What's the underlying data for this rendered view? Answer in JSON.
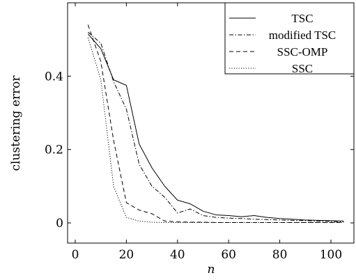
{
  "chart_data": {
    "type": "line",
    "title": "",
    "xlabel": "n",
    "ylabel": "clustering error",
    "xlim": [
      -3,
      109
    ],
    "ylim": [
      -0.055,
      0.6
    ],
    "x_ticks": [
      0,
      20,
      40,
      60,
      80,
      100
    ],
    "y_ticks": [
      0,
      0.2,
      0.4
    ],
    "y_tick_labels": [
      "0",
      "0.2",
      "0.4"
    ],
    "grid": false,
    "legend_position": "top-right",
    "series": [
      {
        "name": "TSC",
        "style": "solid",
        "x": [
          5,
          10,
          15,
          20,
          25,
          30,
          35,
          40,
          45,
          50,
          55,
          60,
          65,
          70,
          75,
          80,
          85,
          90,
          95,
          100,
          105
        ],
        "y": [
          0.515,
          0.475,
          0.39,
          0.375,
          0.215,
          0.15,
          0.1,
          0.062,
          0.052,
          0.032,
          0.022,
          0.02,
          0.017,
          0.02,
          0.015,
          0.012,
          0.01,
          0.008,
          0.007,
          0.006,
          0.005
        ]
      },
      {
        "name": "modified TSC",
        "style": "dashdot",
        "x": [
          5,
          10,
          15,
          20,
          25,
          30,
          35,
          40,
          45,
          50,
          55,
          60,
          65,
          70,
          75,
          80,
          85,
          90,
          95,
          100,
          105
        ],
        "y": [
          0.52,
          0.49,
          0.385,
          0.31,
          0.16,
          0.1,
          0.07,
          0.027,
          0.038,
          0.02,
          0.015,
          0.013,
          0.012,
          0.01,
          0.009,
          0.008,
          0.007,
          0.006,
          0.005,
          0.004,
          0.003
        ]
      },
      {
        "name": "SSC-OMP",
        "style": "dashed",
        "x": [
          5,
          10,
          15,
          20,
          25,
          30,
          35,
          40,
          45,
          50,
          55,
          60,
          65,
          70,
          75,
          80,
          85,
          90,
          95,
          100,
          105
        ],
        "y": [
          0.54,
          0.44,
          0.225,
          0.055,
          0.035,
          0.025,
          0.005,
          0.003,
          0.002,
          0.002,
          0.001,
          0.001,
          0.001,
          0.001,
          0.001,
          0.001,
          0.001,
          0.001,
          0.001,
          0.001,
          0.001
        ]
      },
      {
        "name": "SSC",
        "style": "dotted",
        "x": [
          5,
          10,
          15,
          20,
          25,
          30,
          35,
          40,
          45,
          50,
          55,
          60,
          65,
          70,
          75,
          80,
          85,
          90,
          95,
          100,
          105
        ],
        "y": [
          0.505,
          0.39,
          0.1,
          0.015,
          0.005,
          0.002,
          0.001,
          0.001,
          0.001,
          0.001,
          0.001,
          0.001,
          0.001,
          0.001,
          0.001,
          0.001,
          0.001,
          0.001,
          0.001,
          0.001,
          0.001
        ]
      }
    ]
  }
}
